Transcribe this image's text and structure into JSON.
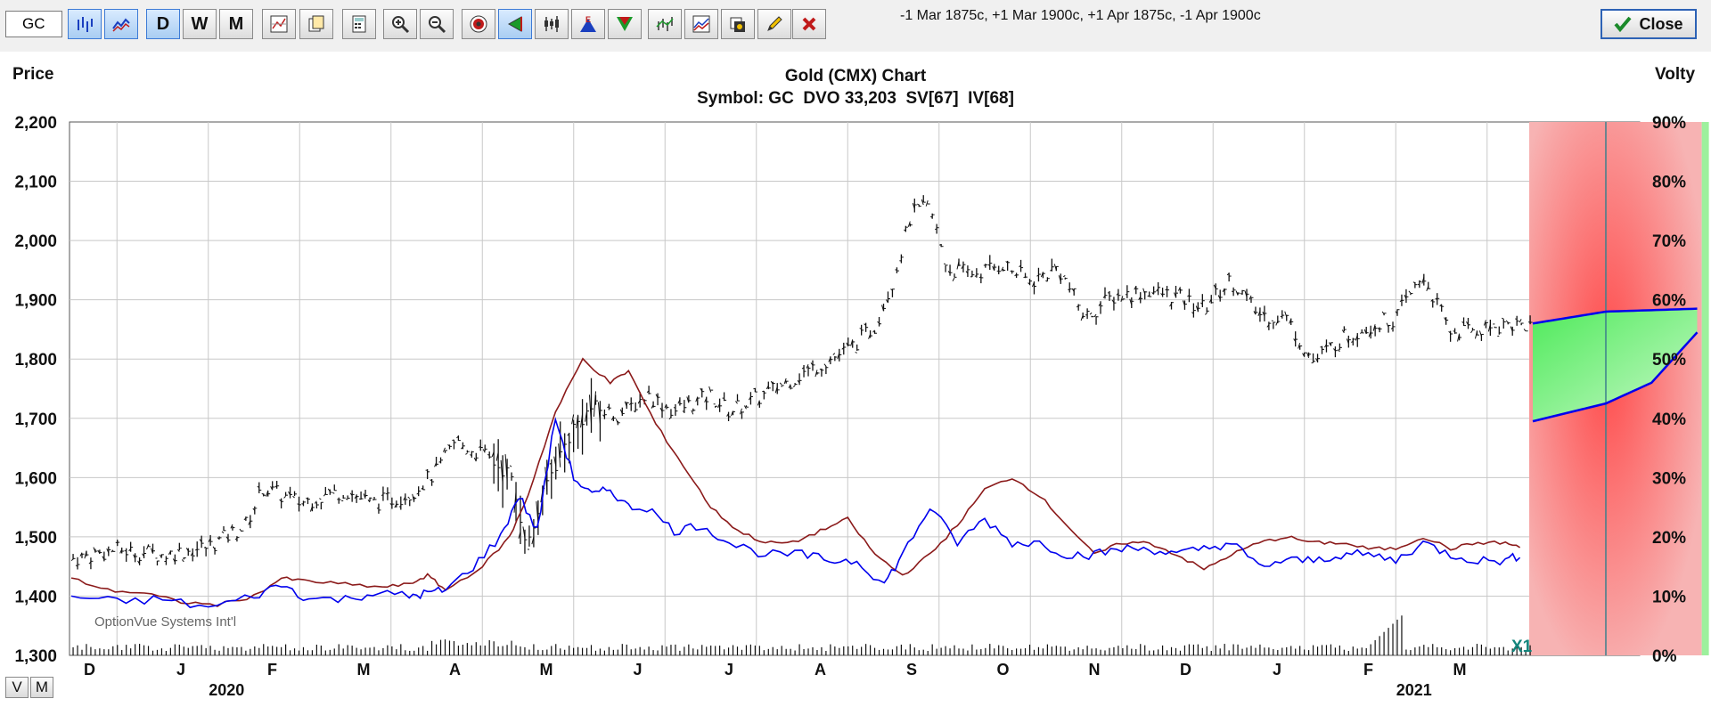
{
  "toolbar": {
    "symbol_value": "GC",
    "buttons": {
      "bar_chart": "bar-chart",
      "line_chart": "line-chart",
      "daily": "D",
      "weekly": "W",
      "monthly": "M",
      "chart_settings": "chart-settings",
      "copy": "copy",
      "calculator": "calculator",
      "zoom_in": "zoom-in",
      "zoom_out": "zoom-out",
      "target": "target",
      "flag": "flag",
      "candles": "candles",
      "expiration": "E",
      "triangle": "triangle",
      "studies": "studies",
      "volatility": "volatility",
      "paint": "paint",
      "pencil": "pencil",
      "delete": "delete"
    },
    "trades_text": "-1 Mar 1875c, +1 Mar 1900c, +1 Apr 1875c, -1 Apr 1900c",
    "close_label": "Close"
  },
  "chart": {
    "left_axis_title": "Price",
    "right_axis_title": "Volty",
    "title": "Gold (CMX) Chart",
    "subtitle": "Symbol: GC  DVO 33,203  SV[67]  IV[68]",
    "watermark": "OptionVue Systems Int'l",
    "marker": "X1"
  },
  "bottom_buttons": {
    "v": "V",
    "m": "M"
  },
  "colors": {
    "price_bars": "#111111",
    "implied_vol": "#0000ee",
    "stat_vol": "#8b1a1a",
    "loss_zone": "#f7a5a5",
    "profit_zone": "#9df09d",
    "grid": "#c8c8c8"
  },
  "chart_data": {
    "type": "bar",
    "title": "Gold (CMX) Chart",
    "subtitle": "Symbol: GC  DVO 33,203  SV[67]  IV[68]",
    "ylabel": "Price",
    "y2label": "Volty",
    "ylim": [
      1300,
      2200
    ],
    "y_ticks": [
      "1,300",
      "1,400",
      "1,500",
      "1,600",
      "1,700",
      "1,800",
      "1,900",
      "2,000",
      "2,100",
      "2,200"
    ],
    "y2lim": [
      0,
      90
    ],
    "y2_ticks": [
      "0%",
      "10%",
      "20%",
      "30%",
      "40%",
      "50%",
      "60%",
      "70%",
      "80%",
      "90%"
    ],
    "x_ticks": [
      "D",
      "J",
      "F",
      "M",
      "A",
      "M",
      "J",
      "J",
      "A",
      "S",
      "O",
      "N",
      "D",
      "J",
      "F",
      "M"
    ],
    "year_labels": [
      "2020",
      "2021"
    ],
    "price_closes": [
      {
        "m": 0.0,
        "c": 1463
      },
      {
        "m": 0.5,
        "c": 1478
      },
      {
        "m": 1.0,
        "c": 1470
      },
      {
        "m": 1.5,
        "c": 1483
      },
      {
        "m": 1.9,
        "c": 1518
      },
      {
        "m": 2.1,
        "c": 1582
      },
      {
        "m": 2.5,
        "c": 1558
      },
      {
        "m": 3.0,
        "c": 1578
      },
      {
        "m": 3.3,
        "c": 1556
      },
      {
        "m": 3.7,
        "c": 1572
      },
      {
        "m": 4.0,
        "c": 1610
      },
      {
        "m": 4.2,
        "c": 1660
      },
      {
        "m": 4.5,
        "c": 1640
      },
      {
        "m": 4.8,
        "c": 1605
      },
      {
        "m": 5.0,
        "c": 1485
      },
      {
        "m": 5.2,
        "c": 1590
      },
      {
        "m": 5.5,
        "c": 1685
      },
      {
        "m": 5.7,
        "c": 1718
      },
      {
        "m": 6.0,
        "c": 1705
      },
      {
        "m": 6.3,
        "c": 1740
      },
      {
        "m": 6.6,
        "c": 1712
      },
      {
        "m": 7.0,
        "c": 1738
      },
      {
        "m": 7.2,
        "c": 1712
      },
      {
        "m": 7.5,
        "c": 1732
      },
      {
        "m": 8.0,
        "c": 1775
      },
      {
        "m": 8.5,
        "c": 1815
      },
      {
        "m": 8.8,
        "c": 1855
      },
      {
        "m": 9.0,
        "c": 1935
      },
      {
        "m": 9.2,
        "c": 2045
      },
      {
        "m": 9.4,
        "c": 2055
      },
      {
        "m": 9.6,
        "c": 1950
      },
      {
        "m": 9.9,
        "c": 1945
      },
      {
        "m": 10.2,
        "c": 1960
      },
      {
        "m": 10.5,
        "c": 1930
      },
      {
        "m": 10.8,
        "c": 1955
      },
      {
        "m": 11.1,
        "c": 1870
      },
      {
        "m": 11.4,
        "c": 1905
      },
      {
        "m": 11.8,
        "c": 1915
      },
      {
        "m": 12.1,
        "c": 1905
      },
      {
        "m": 12.4,
        "c": 1885
      },
      {
        "m": 12.7,
        "c": 1935
      },
      {
        "m": 13.0,
        "c": 1875
      },
      {
        "m": 13.3,
        "c": 1870
      },
      {
        "m": 13.6,
        "c": 1795
      },
      {
        "m": 13.9,
        "c": 1835
      },
      {
        "m": 14.2,
        "c": 1855
      },
      {
        "m": 14.5,
        "c": 1870
      },
      {
        "m": 14.8,
        "c": 1940
      },
      {
        "m": 15.1,
        "c": 1845
      },
      {
        "m": 15.4,
        "c": 1850
      },
      {
        "m": 15.7,
        "c": 1860
      },
      {
        "m": 16.0,
        "c": 1855
      }
    ],
    "implied_vol": [
      {
        "m": 0.0,
        "v": 10
      },
      {
        "m": 0.5,
        "v": 9
      },
      {
        "m": 1.0,
        "v": 9.5
      },
      {
        "m": 1.5,
        "v": 8
      },
      {
        "m": 2.0,
        "v": 10
      },
      {
        "m": 2.3,
        "v": 12
      },
      {
        "m": 2.6,
        "v": 9.5
      },
      {
        "m": 3.0,
        "v": 9.5
      },
      {
        "m": 3.3,
        "v": 10.5
      },
      {
        "m": 3.7,
        "v": 10
      },
      {
        "m": 3.9,
        "v": 10.5
      },
      {
        "m": 4.1,
        "v": 11
      },
      {
        "m": 4.4,
        "v": 15
      },
      {
        "m": 4.7,
        "v": 20
      },
      {
        "m": 4.9,
        "v": 27
      },
      {
        "m": 5.1,
        "v": 21
      },
      {
        "m": 5.3,
        "v": 40
      },
      {
        "m": 5.5,
        "v": 30
      },
      {
        "m": 5.7,
        "v": 27
      },
      {
        "m": 5.9,
        "v": 28
      },
      {
        "m": 6.1,
        "v": 25
      },
      {
        "m": 6.3,
        "v": 25
      },
      {
        "m": 6.6,
        "v": 21
      },
      {
        "m": 6.9,
        "v": 22
      },
      {
        "m": 7.2,
        "v": 19
      },
      {
        "m": 7.6,
        "v": 17
      },
      {
        "m": 8.0,
        "v": 17
      },
      {
        "m": 8.3,
        "v": 16
      },
      {
        "m": 8.6,
        "v": 16
      },
      {
        "m": 8.9,
        "v": 12
      },
      {
        "m": 9.1,
        "v": 17
      },
      {
        "m": 9.4,
        "v": 25
      },
      {
        "m": 9.7,
        "v": 19
      },
      {
        "m": 10.0,
        "v": 23
      },
      {
        "m": 10.3,
        "v": 19
      },
      {
        "m": 10.6,
        "v": 19
      },
      {
        "m": 10.9,
        "v": 17
      },
      {
        "m": 11.2,
        "v": 17
      },
      {
        "m": 11.5,
        "v": 18
      },
      {
        "m": 11.8,
        "v": 18
      },
      {
        "m": 12.1,
        "v": 17
      },
      {
        "m": 12.4,
        "v": 18
      },
      {
        "m": 12.7,
        "v": 19
      },
      {
        "m": 13.0,
        "v": 15
      },
      {
        "m": 13.3,
        "v": 16
      },
      {
        "m": 13.6,
        "v": 16
      },
      {
        "m": 13.9,
        "v": 17
      },
      {
        "m": 14.2,
        "v": 17
      },
      {
        "m": 14.5,
        "v": 16
      },
      {
        "m": 14.8,
        "v": 19
      },
      {
        "m": 15.1,
        "v": 17
      },
      {
        "m": 15.4,
        "v": 16
      },
      {
        "m": 15.7,
        "v": 16
      },
      {
        "m": 15.9,
        "v": 17
      }
    ],
    "stat_vol": [
      {
        "m": 0.0,
        "v": 13
      },
      {
        "m": 0.4,
        "v": 11
      },
      {
        "m": 0.8,
        "v": 10.5
      },
      {
        "m": 1.2,
        "v": 9
      },
      {
        "m": 1.6,
        "v": 8.5
      },
      {
        "m": 2.0,
        "v": 10
      },
      {
        "m": 2.3,
        "v": 13
      },
      {
        "m": 2.6,
        "v": 12.5
      },
      {
        "m": 3.0,
        "v": 12
      },
      {
        "m": 3.4,
        "v": 11.5
      },
      {
        "m": 3.7,
        "v": 12
      },
      {
        "m": 3.9,
        "v": 13.5
      },
      {
        "m": 4.1,
        "v": 11
      },
      {
        "m": 4.5,
        "v": 15
      },
      {
        "m": 4.8,
        "v": 20
      },
      {
        "m": 5.0,
        "v": 27
      },
      {
        "m": 5.3,
        "v": 41
      },
      {
        "m": 5.6,
        "v": 50
      },
      {
        "m": 5.9,
        "v": 46
      },
      {
        "m": 6.1,
        "v": 48
      },
      {
        "m": 6.4,
        "v": 39
      },
      {
        "m": 6.7,
        "v": 32
      },
      {
        "m": 7.0,
        "v": 25
      },
      {
        "m": 7.3,
        "v": 21
      },
      {
        "m": 7.6,
        "v": 19
      },
      {
        "m": 7.9,
        "v": 19
      },
      {
        "m": 8.2,
        "v": 21
      },
      {
        "m": 8.5,
        "v": 23
      },
      {
        "m": 8.8,
        "v": 17
      },
      {
        "m": 9.1,
        "v": 13.5
      },
      {
        "m": 9.4,
        "v": 17
      },
      {
        "m": 9.7,
        "v": 22
      },
      {
        "m": 10.0,
        "v": 28
      },
      {
        "m": 10.3,
        "v": 30
      },
      {
        "m": 10.6,
        "v": 27
      },
      {
        "m": 10.9,
        "v": 22
      },
      {
        "m": 11.2,
        "v": 17
      },
      {
        "m": 11.5,
        "v": 19
      },
      {
        "m": 11.8,
        "v": 19
      },
      {
        "m": 12.1,
        "v": 17
      },
      {
        "m": 12.4,
        "v": 14.5
      },
      {
        "m": 12.7,
        "v": 17
      },
      {
        "m": 13.0,
        "v": 19
      },
      {
        "m": 13.3,
        "v": 20
      },
      {
        "m": 13.6,
        "v": 19
      },
      {
        "m": 13.9,
        "v": 19
      },
      {
        "m": 14.2,
        "v": 18
      },
      {
        "m": 14.5,
        "v": 18
      },
      {
        "m": 14.8,
        "v": 20
      },
      {
        "m": 15.1,
        "v": 18
      },
      {
        "m": 15.4,
        "v": 19
      },
      {
        "m": 15.7,
        "v": 19
      },
      {
        "m": 15.9,
        "v": 18
      }
    ],
    "forecast_upper": [
      {
        "m": 16.0,
        "v": 56
      },
      {
        "m": 16.8,
        "v": 58
      },
      {
        "m": 17.8,
        "v": 58.5
      }
    ],
    "forecast_lower": [
      {
        "m": 16.0,
        "v": 39.5
      },
      {
        "m": 16.8,
        "v": 42.5
      },
      {
        "m": 17.3,
        "v": 46
      },
      {
        "m": 17.8,
        "v": 54.5
      }
    ],
    "expiration_month_index": 16.8
  }
}
